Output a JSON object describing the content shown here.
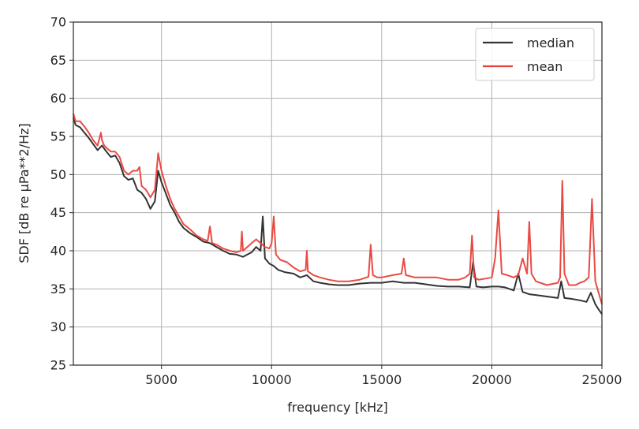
{
  "chart_data": {
    "type": "line",
    "title": "",
    "xlabel": "frequency [kHz]",
    "ylabel": "SDF [dB re µPa**2/Hz]",
    "xlim": [
      1000,
      25000
    ],
    "ylim": [
      25,
      70
    ],
    "xticks": [
      "5000",
      "10000",
      "15000",
      "20000",
      "25000"
    ],
    "yticks": [
      "25",
      "30",
      "35",
      "40",
      "45",
      "50",
      "55",
      "60",
      "65",
      "70"
    ],
    "grid": true,
    "legend_position": "top-right",
    "series": [
      {
        "name": "median",
        "color": "#333333",
        "x": [
          1000,
          1100,
          1300,
          1500,
          1700,
          1900,
          2100,
          2300,
          2500,
          2700,
          2900,
          3100,
          3300,
          3500,
          3700,
          3900,
          4100,
          4300,
          4500,
          4700,
          4850,
          5000,
          5200,
          5400,
          5600,
          5800,
          6000,
          6300,
          6600,
          6900,
          7200,
          7500,
          7800,
          8100,
          8400,
          8700,
          8900,
          9100,
          9300,
          9500,
          9600,
          9700,
          9900,
          10100,
          10300,
          10600,
          11000,
          11300,
          11600,
          11900,
          12200,
          12600,
          13000,
          13500,
          14000,
          14500,
          15000,
          15500,
          16000,
          16500,
          17000,
          17500,
          18000,
          18500,
          19000,
          19150,
          19300,
          19600,
          20000,
          20300,
          20600,
          21000,
          21200,
          21400,
          21700,
          22000,
          22500,
          23000,
          23150,
          23300,
          23600,
          24000,
          24300,
          24500,
          24700,
          24850,
          25000
        ],
        "y": [
          57.5,
          56.5,
          56.2,
          55.5,
          54.8,
          54.0,
          53.2,
          53.8,
          53.0,
          52.3,
          52.5,
          51.5,
          49.8,
          49.3,
          49.5,
          48.0,
          47.6,
          46.8,
          45.5,
          46.5,
          50.5,
          49.0,
          47.5,
          46.0,
          45.0,
          43.8,
          43.0,
          42.3,
          41.8,
          41.2,
          41.0,
          40.5,
          40.0,
          39.6,
          39.5,
          39.2,
          39.5,
          39.8,
          40.5,
          40.0,
          44.5,
          39.0,
          38.3,
          38.0,
          37.5,
          37.2,
          37.0,
          36.5,
          36.8,
          36.0,
          35.8,
          35.6,
          35.5,
          35.5,
          35.7,
          35.8,
          35.8,
          36.0,
          35.8,
          35.8,
          35.6,
          35.4,
          35.3,
          35.3,
          35.2,
          38.5,
          35.3,
          35.2,
          35.3,
          35.3,
          35.2,
          34.8,
          37.0,
          34.6,
          34.3,
          34.2,
          34.0,
          33.8,
          36.0,
          33.8,
          33.7,
          33.5,
          33.3,
          34.5,
          33.0,
          32.3,
          31.7
        ]
      },
      {
        "name": "mean",
        "color": "#e8413a",
        "x": [
          1000,
          1100,
          1300,
          1500,
          1700,
          1900,
          2100,
          2250,
          2300,
          2400,
          2500,
          2700,
          2900,
          3100,
          3300,
          3500,
          3700,
          3900,
          4000,
          4100,
          4300,
          4500,
          4700,
          4850,
          5000,
          5200,
          5400,
          5600,
          5800,
          6000,
          6300,
          6600,
          6900,
          7100,
          7200,
          7300,
          7500,
          7800,
          8100,
          8400,
          8600,
          8650,
          8700,
          8900,
          9100,
          9300,
          9500,
          9700,
          9900,
          10000,
          10100,
          10200,
          10400,
          10700,
          11000,
          11300,
          11550,
          11600,
          11650,
          11900,
          12200,
          12600,
          13000,
          13500,
          14000,
          14400,
          14500,
          14600,
          14800,
          15000,
          15500,
          15900,
          16000,
          16100,
          16500,
          17000,
          17500,
          18000,
          18500,
          18800,
          19000,
          19100,
          19200,
          19400,
          19600,
          20000,
          20150,
          20300,
          20450,
          20700,
          21000,
          21200,
          21400,
          21600,
          21700,
          21800,
          22000,
          22500,
          23000,
          23100,
          23200,
          23300,
          23500,
          23800,
          24000,
          24200,
          24400,
          24550,
          24700,
          24850,
          25000
        ],
        "y": [
          58.0,
          57.0,
          57.0,
          56.3,
          55.5,
          54.5,
          53.8,
          55.5,
          54.5,
          53.8,
          53.5,
          53.0,
          53.0,
          52.3,
          50.5,
          50.0,
          50.5,
          50.5,
          51.0,
          48.5,
          48.0,
          47.0,
          48.0,
          52.8,
          50.5,
          48.5,
          46.8,
          45.5,
          44.5,
          43.5,
          42.8,
          42.0,
          41.5,
          41.3,
          43.2,
          41.0,
          40.8,
          40.3,
          40.0,
          39.8,
          40.0,
          42.5,
          40.0,
          40.5,
          41.0,
          41.5,
          41.0,
          40.5,
          40.3,
          41.0,
          44.5,
          39.5,
          38.8,
          38.5,
          37.8,
          37.3,
          37.5,
          40.0,
          37.3,
          36.8,
          36.5,
          36.2,
          36.0,
          36.0,
          36.2,
          36.6,
          40.8,
          36.8,
          36.5,
          36.5,
          36.8,
          37.0,
          39.0,
          36.8,
          36.5,
          36.5,
          36.5,
          36.2,
          36.2,
          36.5,
          37.0,
          42.0,
          36.5,
          36.2,
          36.3,
          36.5,
          39.0,
          45.3,
          37.0,
          36.8,
          36.5,
          36.8,
          39.0,
          37.0,
          43.8,
          37.0,
          36.0,
          35.5,
          35.8,
          36.5,
          49.2,
          37.0,
          35.5,
          35.5,
          35.8,
          36.0,
          36.5,
          46.8,
          36.0,
          34.5,
          33.0
        ]
      }
    ]
  }
}
